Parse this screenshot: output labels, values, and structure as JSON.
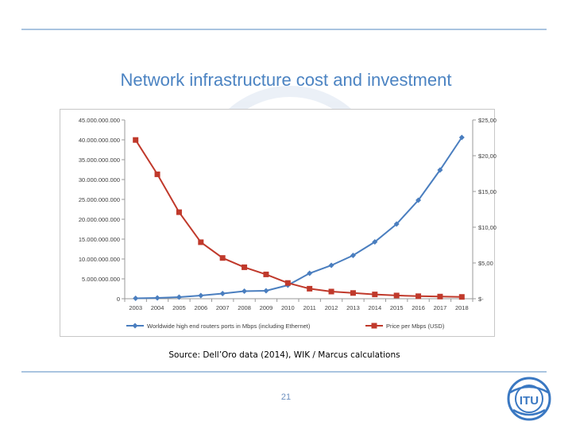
{
  "slide": {
    "title": "Network infrastructure cost and investment",
    "source": "Source: Dell’Oro data (2014), WIK / Marcus calculations",
    "page_number": "21",
    "logo_text": "ITU"
  },
  "colors": {
    "rule": "#a9c4e0",
    "title": "#4b83c2",
    "series_ports": "#4a7ebf",
    "series_price": "#c0392b"
  },
  "chart_data": {
    "type": "line",
    "categories": [
      "2003",
      "2004",
      "2005",
      "2006",
      "2007",
      "2008",
      "2009",
      "2010",
      "2011",
      "2012",
      "2013",
      "2014",
      "2015",
      "2016",
      "2017",
      "2018"
    ],
    "series": [
      {
        "name": "Worldwide high end routers ports in Mbps (including Ethernet)",
        "axis": "left",
        "color": "#4a7ebf",
        "marker": "diamond",
        "values": [
          100000000,
          200000000,
          400000000,
          800000000,
          1300000000,
          1900000000,
          2000000000,
          3400000000,
          6400000000,
          8400000000,
          10900000000,
          14300000000,
          18800000000,
          24800000000,
          32400000000,
          40600000000
        ]
      },
      {
        "name": "Price per Mbps (USD)",
        "axis": "right",
        "color": "#c0392b",
        "marker": "square",
        "values": [
          22.2,
          17.4,
          12.1,
          7.9,
          5.7,
          4.4,
          3.4,
          2.2,
          1.4,
          1.0,
          0.8,
          0.6,
          0.45,
          0.35,
          0.3,
          0.25
        ]
      }
    ],
    "y_left": {
      "min": 0,
      "max": 45000000000,
      "step": 5000000000,
      "tick_labels": [
        "0",
        "5.000.000.000",
        "10.000.000.000",
        "15.000.000.000",
        "20.000.000.000",
        "25.000.000.000",
        "30.000.000.000",
        "35.000.000.000",
        "40.000.000.000",
        "45.000.000.000"
      ]
    },
    "y_right": {
      "min": 0,
      "max": 25,
      "step": 5,
      "tick_labels": [
        "$-",
        "$5,00",
        "$10,00",
        "$15,00",
        "$20,00",
        "$25,00"
      ]
    },
    "grid": false,
    "legend_position": "bottom"
  }
}
